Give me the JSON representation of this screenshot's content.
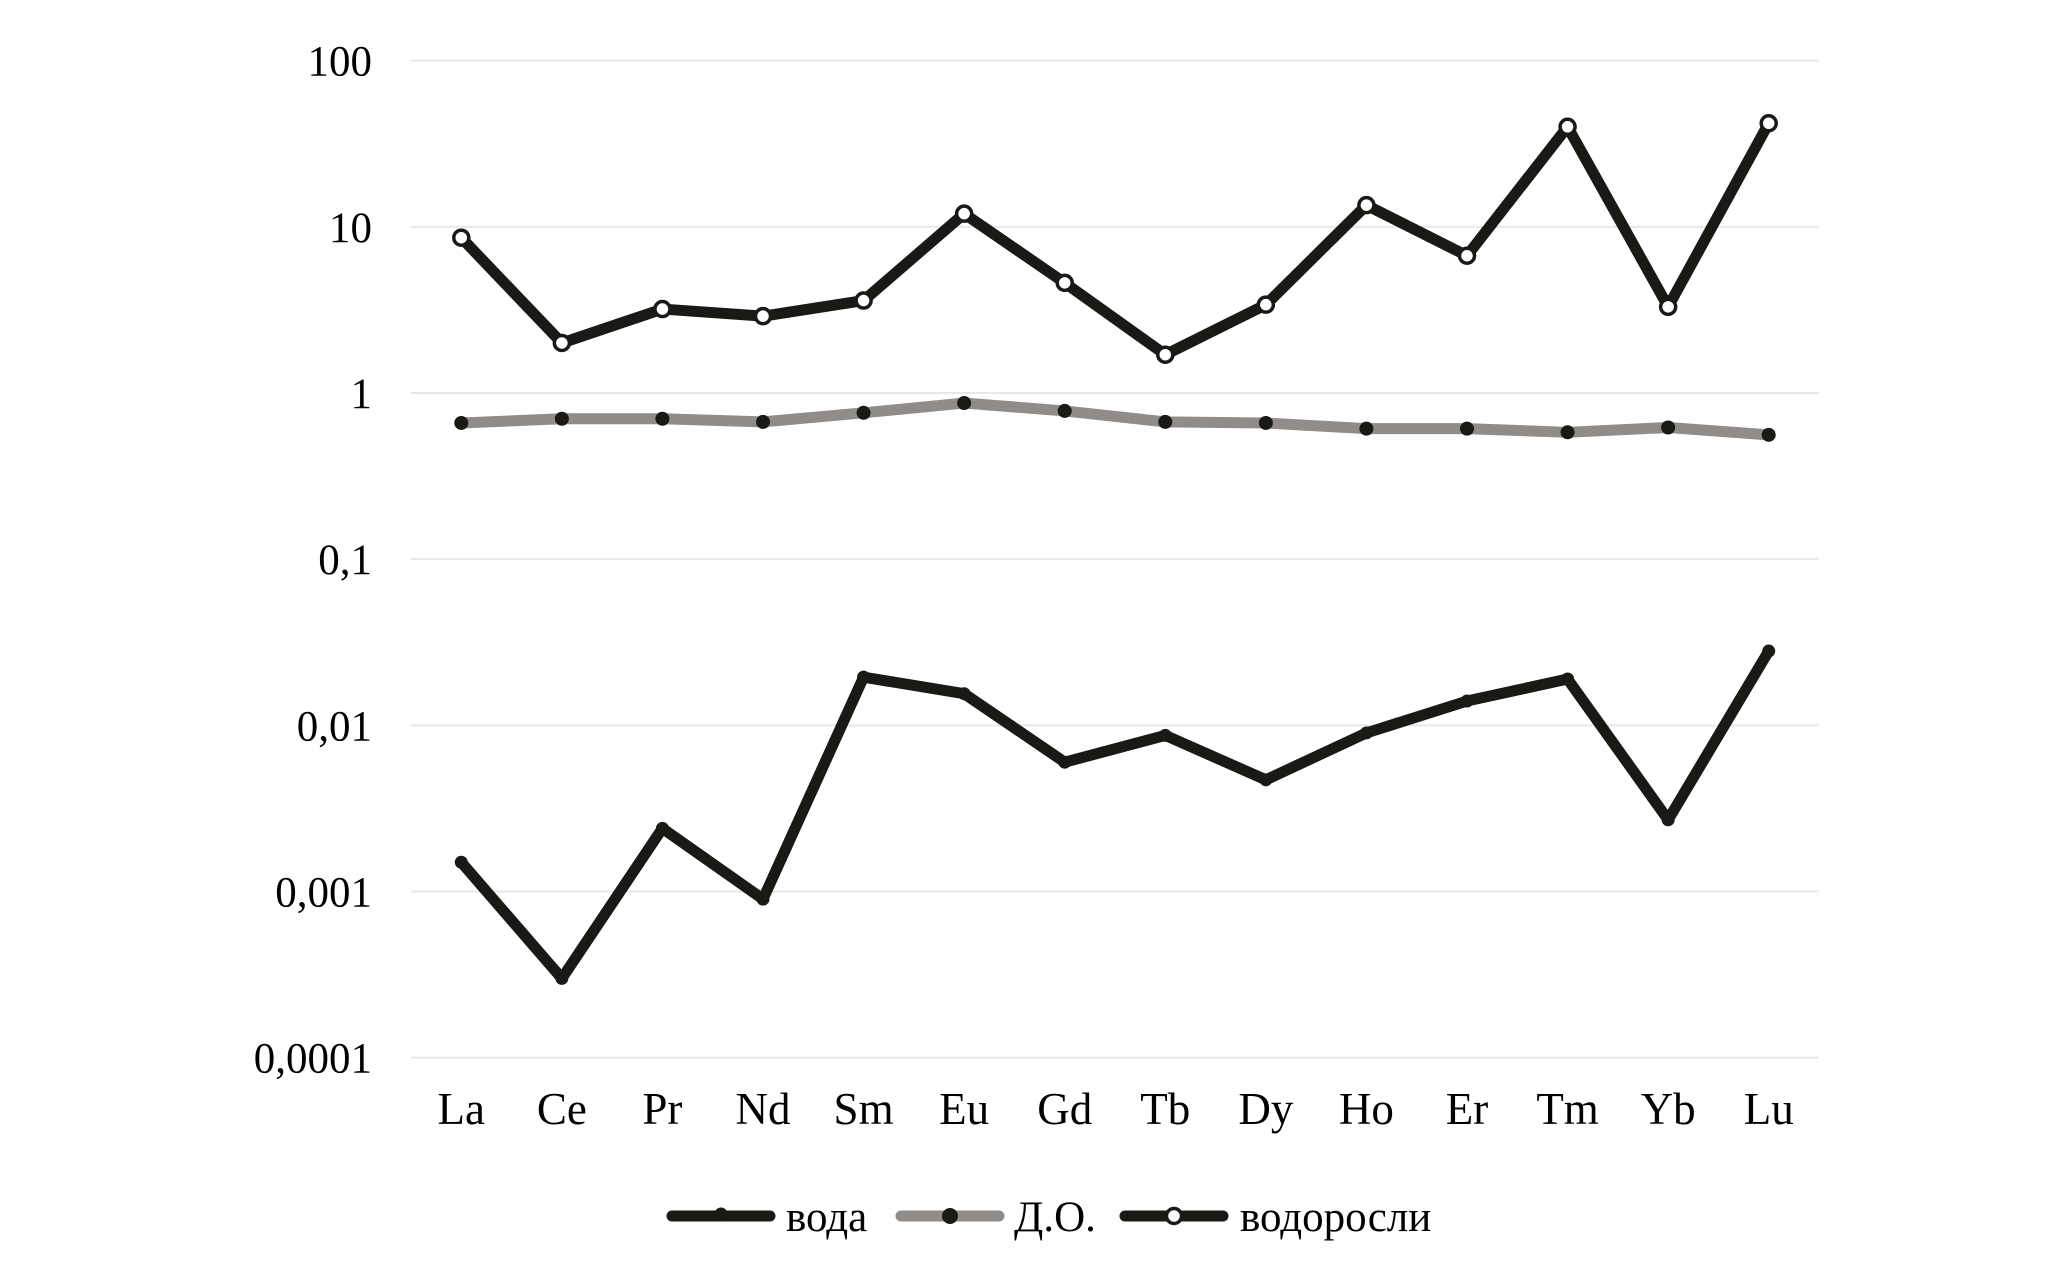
{
  "chart_data": {
    "type": "line",
    "title": "",
    "categories": [
      "La",
      "Ce",
      "Pr",
      "Nd",
      "Sm",
      "Eu",
      "Gd",
      "Tb",
      "Dy",
      "Ho",
      "Er",
      "Tm",
      "Yb",
      "Lu"
    ],
    "y_axis": {
      "scale": "log",
      "tick_labels": [
        "100",
        "10",
        "1",
        "0,1",
        "0,01",
        "0,001",
        "0,0001"
      ],
      "tick_values": [
        100,
        10,
        1,
        0.1,
        0.01,
        0.001,
        0.0001
      ],
      "range": [
        0.0001,
        100
      ],
      "decimal_separator": "comma",
      "grid": "horizontal-only"
    },
    "x_axis": {
      "label": "",
      "type": "category"
    },
    "legend_position": "bottom-center",
    "series": [
      {
        "name": "вода",
        "color": "#1a1916",
        "marker": "filled-dot",
        "marker_color": "#1a1916",
        "values": [
          0.0015,
          0.0003,
          0.0024,
          0.0009,
          0.0195,
          0.0155,
          0.006,
          0.0087,
          0.0047,
          0.009,
          0.014,
          0.019,
          0.0027,
          0.028
        ]
      },
      {
        "name": "Д.О.",
        "color": "#8f8c89",
        "marker": "filled-dot",
        "marker_color": "#1a1916",
        "values": [
          0.66,
          0.7,
          0.7,
          0.67,
          0.76,
          0.87,
          0.78,
          0.67,
          0.66,
          0.61,
          0.61,
          0.58,
          0.62,
          0.56
        ]
      },
      {
        "name": "водоросли",
        "color": "#1a1916",
        "marker": "open-circle",
        "marker_color": "#ffffff",
        "values": [
          8.6,
          2.0,
          3.2,
          2.9,
          3.6,
          12,
          4.6,
          1.7,
          3.4,
          13.5,
          6.7,
          40,
          3.3,
          42
        ]
      }
    ],
    "colors": {
      "line_black": "#1a1916",
      "line_gray": "#8f8c89",
      "gridline": "#e8e8e8",
      "background": "#ffffff",
      "text": "#000000"
    }
  }
}
